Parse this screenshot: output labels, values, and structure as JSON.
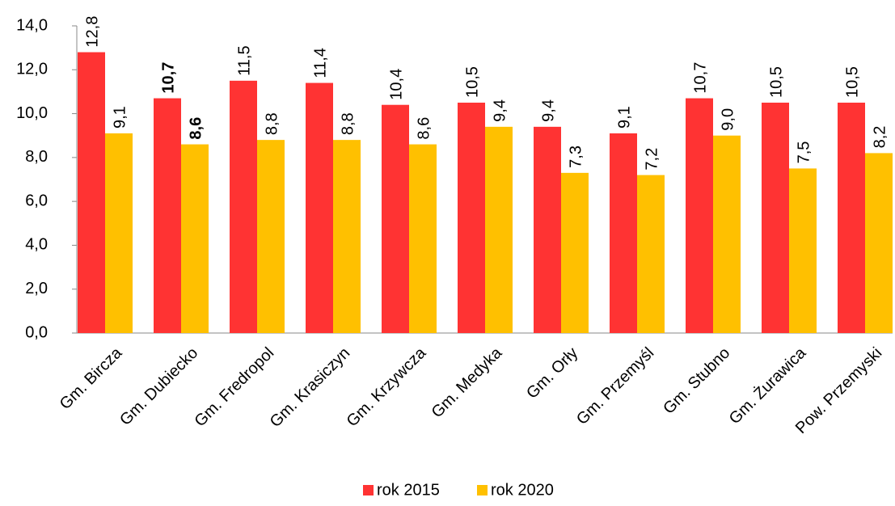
{
  "chart_data": {
    "type": "bar",
    "categories": [
      "Gm. Bircza",
      "Gm. Dubiecko",
      "Gm. Fredropol",
      "Gm. Krasiczyn",
      "Gm. Krzywcza",
      "Gm. Medyka",
      "Gm. Orły",
      "Gm. Przemyśl",
      "Gm. Stubno",
      "Gm. Żurawica",
      "Pow. Przemyski"
    ],
    "series": [
      {
        "name": "rok 2015",
        "color": "#ff3333",
        "values": [
          12.8,
          10.7,
          11.5,
          11.4,
          10.4,
          10.5,
          9.4,
          9.1,
          10.7,
          10.5,
          10.5
        ],
        "value_labels": [
          "12,8",
          "10,7",
          "11,5",
          "11,4",
          "10,4",
          "10,5",
          "9,4",
          "9,1",
          "10,7",
          "10,5",
          "10,5"
        ]
      },
      {
        "name": "rok 2020",
        "color": "#ffc000",
        "values": [
          9.1,
          8.6,
          8.8,
          8.8,
          8.6,
          9.4,
          7.3,
          7.2,
          9.0,
          7.5,
          8.2
        ],
        "value_labels": [
          "9,1",
          "8,6",
          "8,8",
          "8,8",
          "8,6",
          "9,4",
          "7,3",
          "7,2",
          "9,0",
          "7,5",
          "8,2"
        ]
      }
    ],
    "highlight_category": 1,
    "ylim": [
      0,
      14
    ],
    "yticks": [
      {
        "value": 0,
        "label": "0,0"
      },
      {
        "value": 2,
        "label": "2,0"
      },
      {
        "value": 4,
        "label": "4,0"
      },
      {
        "value": 6,
        "label": "6,0"
      },
      {
        "value": 8,
        "label": "8,0"
      },
      {
        "value": 10,
        "label": "10,0"
      },
      {
        "value": 12,
        "label": "12,0"
      },
      {
        "value": 14,
        "label": "14,0"
      }
    ],
    "grid": false,
    "legend": "bottom"
  }
}
